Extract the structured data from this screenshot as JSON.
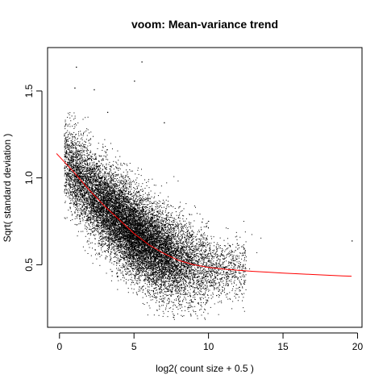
{
  "chart_data": {
    "type": "scatter",
    "title": "voom: Mean-variance trend",
    "xlabel": "log2( count size + 0.5 )",
    "ylabel": "Sqrt( standard deviation )",
    "xlim": [
      -0.8,
      20.3
    ],
    "ylim": [
      0.14,
      1.75
    ],
    "x_ticks": [
      "0",
      "5",
      "10",
      "15",
      "20"
    ],
    "y_ticks": [
      "0.5",
      "1.0",
      "1.5"
    ],
    "grid": false,
    "legend": "none",
    "point_color": "#000000",
    "trend_color": "#ff0000",
    "trend_line": {
      "x": [
        -0.2,
        1,
        2,
        3,
        4,
        5,
        6,
        7,
        8,
        9,
        10,
        11,
        12,
        13,
        14,
        15,
        16,
        17,
        18,
        19,
        19.6
      ],
      "y": [
        1.14,
        1.03,
        0.93,
        0.84,
        0.76,
        0.68,
        0.615,
        0.565,
        0.525,
        0.5,
        0.485,
        0.475,
        0.468,
        0.462,
        0.457,
        0.452,
        0.448,
        0.444,
        0.44,
        0.436,
        0.434
      ]
    },
    "points_description": "dense cloud of ~15000 genes; spread around trend, widest between x 1–10",
    "outliers": [
      {
        "x": 1.1,
        "y": 1.64
      },
      {
        "x": 5.0,
        "y": 1.56
      },
      {
        "x": 5.5,
        "y": 1.67
      },
      {
        "x": 2.3,
        "y": 1.51
      },
      {
        "x": 1.0,
        "y": 1.52
      },
      {
        "x": 19.6,
        "y": 0.64
      },
      {
        "x": 3.2,
        "y": 1.38
      },
      {
        "x": 7.0,
        "y": 1.32
      }
    ]
  }
}
